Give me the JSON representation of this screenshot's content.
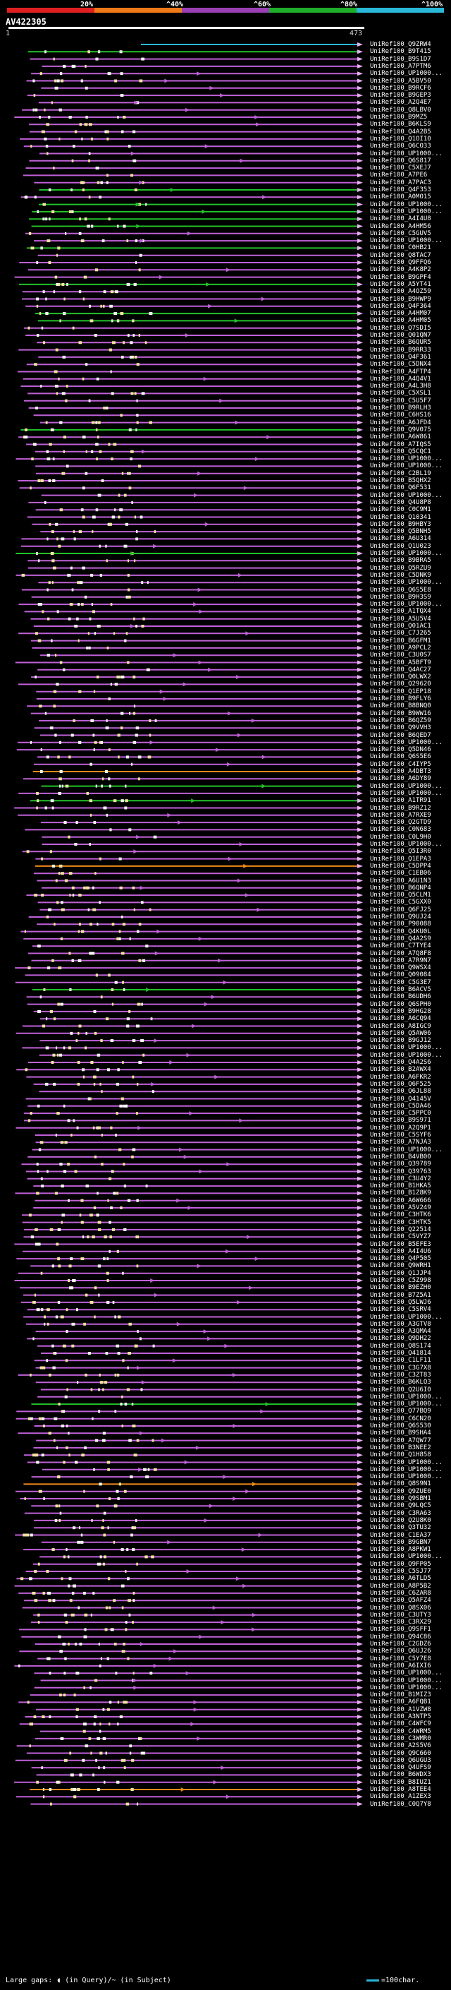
{
  "legend": {
    "labels": [
      "20%",
      "^40%",
      "^60%",
      "^80%",
      "^100%"
    ],
    "colors": [
      "#e02020",
      "#ef7a1a",
      "#9b3fb5",
      "#1fae2a",
      "#2ab8d8"
    ]
  },
  "query": {
    "name": "AV422305",
    "start_label": "1",
    "end_label": "473"
  },
  "hits": [
    "UniRef100_Q9ZRW4",
    "UniRef100_B9T415",
    "UniRef100_B9S1D7",
    "UniRef100_A7PTM6",
    "UniRef100_UP1000...",
    "UniRef100_A5BV50",
    "UniRef100_B9RCF6",
    "UniRef100_B9GEP3",
    "UniRef100_A2Q4E7",
    "UniRef100_Q8LBV0",
    "UniRef100_B9MZ5",
    "UniRef100_B6KLS9",
    "UniRef100_Q4A2B5",
    "UniRef100_Q1OI10",
    "UniRef100_Q6CO33",
    "UniRef100_UP1000...",
    "UniRef100_Q6S817",
    "UniRef100_C5XEJ7",
    "UniRef100_A7PE6",
    "UniRef100_A7PAC3",
    "UniRef100_Q4F353",
    "UniRef100_A0MO15",
    "UniRef100_UP1000...",
    "UniRef100_UP1000...",
    "UniRef100_A4I4U8",
    "UniRef100_A4HM56",
    "UniRef100_C5GUV5",
    "UniRef100_UP1000...",
    "UniRef100_C0HB21",
    "UniRef100_Q8TAC7",
    "UniRef100_Q9FFQ6",
    "UniRef100_A4K8P2",
    "UniRef100_B9GPF4",
    "UniRef100_A5YT41",
    "UniRef100_A4OZ59",
    "UniRef100_B9HWP9",
    "UniRef100_Q4F364",
    "UniRef100_A4HM07",
    "UniRef100_A4HM05",
    "UniRef100_Q7SDI5",
    "UniRef100_Q01QN7",
    "UniRef100_B6QUR5",
    "UniRef100_B9RR33",
    "UniRef100_Q4F361",
    "UniRef100_C5DNX4",
    "UniRef100_A4FTP4",
    "UniRef100_A4Q4V1",
    "UniRef100_A4L3H8",
    "UniRef100_C5XSL1",
    "UniRef100_C5U5F7",
    "UniRef100_B9RLH3",
    "UniRef100_C6HS16",
    "UniRef100_A6JFD4",
    "UniRef100_Q9V075",
    "UniRef100_A6W861",
    "UniRef100_A7IQS5",
    "UniRef100_Q5CQC1",
    "UniRef100_UP1000...",
    "UniRef100_UP1000...",
    "UniRef100_C2BL19",
    "UniRef100_B5QHX2",
    "UniRef100_Q6F531",
    "UniRef100_UP1000...",
    "UniRef100_Q4U8P8",
    "UniRef100_C0C9M1",
    "UniRef100_Q10341",
    "UniRef100_B9HBY3",
    "UniRef100_Q5BNH5",
    "UniRef100_A6U314",
    "UniRef100_Q1U023",
    "UniRef100_UP1000...",
    "UniRef100_B9BRA5",
    "UniRef100_Q5RZU9",
    "UniRef100_C5DNK9",
    "UniRef100_UP1000...",
    "UniRef100_Q6S5E8",
    "UniRef100_B9H3S9",
    "UniRef100_UP1000...",
    "UniRef100_A1TQX4",
    "UniRef100_A5U5V4",
    "UniRef100_Q01AC1",
    "UniRef100_C7J265",
    "UniRef100_B6GFM1",
    "UniRef100_A9PCL2",
    "UniRef100_C3U0S7",
    "UniRef100_A5BFT9",
    "UniRef100_Q4AC27",
    "UniRef100_Q0LWX2",
    "UniRef100_Q29620",
    "UniRef100_Q1EP18",
    "UniRef100_B9FLY6",
    "UniRef100_B8BNQ0",
    "UniRef100_B9WW16",
    "UniRef100_B6QZ59",
    "UniRef100_Q9VVH3",
    "UniRef100_B6QED7",
    "UniRef100_UP1000...",
    "UniRef100_Q5DN46",
    "UniRef100_Q6S5E6",
    "UniRef100_C4IYP5",
    "UniRef100_A4DBT3",
    "UniRef100_A6DY89",
    "UniRef100_UP1000...",
    "UniRef100_UP1000...",
    "UniRef100_A1TR91",
    "UniRef100_B9RZ12",
    "UniRef100_A7RXE9",
    "UniRef100_Q2GTD9",
    "UniRef100_C0N683",
    "UniRef100_C0L9H0",
    "UniRef100_UP1000...",
    "UniRef100_Q5I3R0",
    "UniRef100_Q1EPA3",
    "UniRef100_C5DPP4",
    "UniRef100_C1EB06",
    "UniRef100_A6U1N3",
    "UniRef100_B6QNP4",
    "UniRef100_Q5CLM1",
    "UniRef100_C5GXX0",
    "UniRef100_Q6FJ25",
    "UniRef100_Q9UJ24",
    "UniRef100_P90088",
    "UniRef100_Q4KU0L",
    "UniRef100_Q4A2S9",
    "UniRef100_C7TYE4",
    "UniRef100_A7Q8F8",
    "UniRef100_A7R9N7",
    "UniRef100_Q9WSX4",
    "UniRef100_Q09084",
    "UniRef100_C5G3E7",
    "UniRef100_B6ACV5",
    "UniRef100_B6UDH6",
    "UniRef100_Q6SPH0",
    "UniRef100_B9HG28",
    "UniRef100_A6CQ94",
    "UniRef100_A8IGC9",
    "UniRef100_Q5AW06",
    "UniRef100_B9GJ12",
    "UniRef100_UP1000...",
    "UniRef100_UP1000...",
    "UniRef100_Q4A2S6",
    "UniRef100_B2AWX4",
    "UniRef100_A6FKR2",
    "UniRef100_Q6F525",
    "UniRef100_Q6JL88",
    "UniRef100_Q4145V",
    "UniRef100_C5DA46",
    "UniRef100_C5PPC0",
    "UniRef100_B9S971",
    "UniRef100_A2Q9P1",
    "UniRef100_C5SYF6",
    "UniRef100_A7NJA3",
    "UniRef100_UP1000...",
    "UniRef100_B4VB00",
    "UniRef100_Q39789",
    "UniRef100_Q39763",
    "UniRef100_C3U4Y2",
    "UniRef100_B1HKA5",
    "UniRef100_B1Z8K9",
    "UniRef100_A6W666",
    "UniRef100_A5V249",
    "UniRef100_C3HTK6",
    "UniRef100_C3HTK5",
    "UniRef100_Q22514",
    "UniRef100_C5VYZ7",
    "UniRef100_B5EFE3",
    "UniRef100_A4I4U6",
    "UniRef100_Q4P505",
    "UniRef100_Q9WRH1",
    "UniRef100_Q1JJP4",
    "UniRef100_C5Z998",
    "UniRef100_B9EZH0",
    "UniRef100_B7Z5A1",
    "UniRef100_Q5LWJ6",
    "UniRef100_C5SRV4",
    "UniRef100_UP1000...",
    "UniRef100_A3GTV8",
    "UniRef100_A3QMA4",
    "UniRef100_Q9DH22",
    "UniRef100_Q8S174",
    "UniRef100_Q41814",
    "UniRef100_C1LF11",
    "UniRef100_C3G7X8",
    "UniRef100_C3ZT83",
    "UniRef100_B6KLQ3",
    "UniRef100_Q2U6I0",
    "UniRef100_UP1000...",
    "UniRef100_UP1000...",
    "UniRef100_Q77BQ9",
    "UniRef100_C6CN20",
    "UniRef100_Q6S530",
    "UniRef100_B9SHA4",
    "UniRef100_A7QW77",
    "UniRef100_B3NEE2",
    "UniRef100_Q1H858",
    "UniRef100_UP1000...",
    "UniRef100_UP1000...",
    "UniRef100_UP1000...",
    "UniRef100_Q8S9N1",
    "UniRef100_Q9ZUE0",
    "UniRef100_Q9SBM1",
    "UniRef100_Q9LQC5",
    "UniRef100_C3RA63",
    "UniRef100_Q2U8K0",
    "UniRef100_Q3TU32",
    "UniRef100_C1EA37",
    "UniRef100_B9GBN7",
    "UniRef100_A8PKW1",
    "UniRef100_UP1000...",
    "UniRef100_Q9FP05",
    "UniRef100_C5SJ77",
    "UniRef100_A6TLD5",
    "UniRef100_A8P5B2",
    "UniRef100_C6ZAR8",
    "UniRef100_Q5AFZ4",
    "UniRef100_Q8SX06",
    "UniRef100_C3UTY3",
    "UniRef100_C3RX29",
    "UniRef100_Q9SFF1",
    "UniRef100_Q94C86",
    "UniRef100_C2GDZ6",
    "UniRef100_Q6UJ26",
    "UniRef100_C5Y7E8",
    "UniRef100_A6IXI6",
    "UniRef100_UP1000...",
    "UniRef100_UP1000...",
    "UniRef100_UP1000...",
    "UniRef100_B1MIZ3",
    "UniRef100_A6FQB1",
    "UniRef100_A1VZW8",
    "UniRef100_A3NTP5",
    "UniRef100_C4WFC9",
    "UniRef100_C4WRM5",
    "UniRef100_C3WMR0",
    "UniRef100_A2S5V6",
    "UniRef100_Q9C660",
    "UniRef100_Q6UGU3",
    "UniRef100_Q4UFS9",
    "UniRef100_B6WDX3",
    "UniRef100_B8IUZ1",
    "UniRef100_A8TEE4",
    "UniRef100_A1ZEX3",
    "UniRef100_C0Q7Y8"
  ],
  "footer": {
    "gaps_label": "Large gaps: ◖ (in Query)/~ (in Subject)",
    "scale_label": "=100char."
  }
}
